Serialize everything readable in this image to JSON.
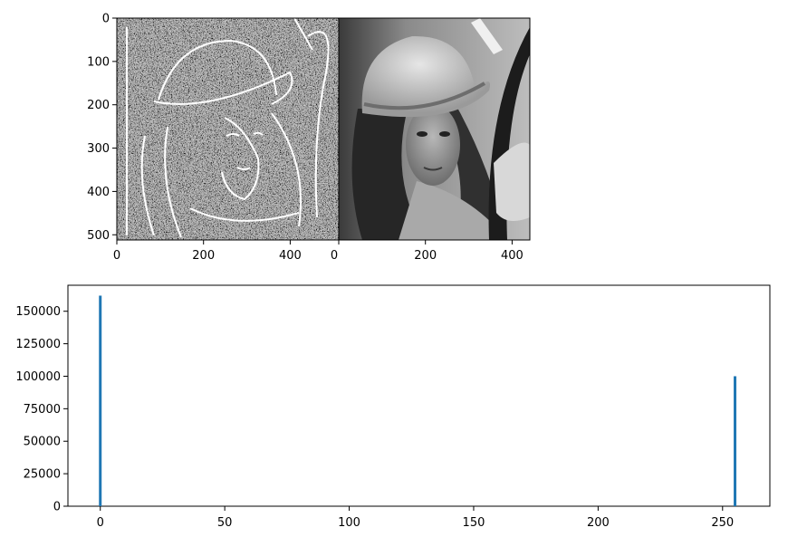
{
  "colors": {
    "background": "#ffffff",
    "axis": "#000000",
    "histogram_bar": "#1f77b4"
  },
  "images": [
    {
      "description_icon": "edge-filtered-portrait-image",
      "xlim": [
        0,
        512
      ],
      "ylim": [
        512,
        0
      ],
      "xticks": [
        0,
        200,
        400
      ],
      "yticks": [
        0,
        100,
        200,
        300,
        400,
        500
      ]
    },
    {
      "description_icon": "grayscale-portrait-image",
      "xlim": [
        0,
        512
      ],
      "xticks": [
        0,
        200,
        400
      ]
    }
  ],
  "chart_data": {
    "type": "bar",
    "title": "",
    "xlabel": "",
    "ylabel": "",
    "xlim": [
      -13,
      269
    ],
    "ylim": [
      0,
      170000
    ],
    "xticks": [
      0,
      50,
      100,
      150,
      200,
      250
    ],
    "yticks": [
      0,
      25000,
      50000,
      75000,
      100000,
      125000,
      150000
    ],
    "series": [
      {
        "values": [
          {
            "x": 0,
            "y": 162000
          },
          {
            "x": 255,
            "y": 100000
          }
        ]
      }
    ],
    "grid": false
  }
}
